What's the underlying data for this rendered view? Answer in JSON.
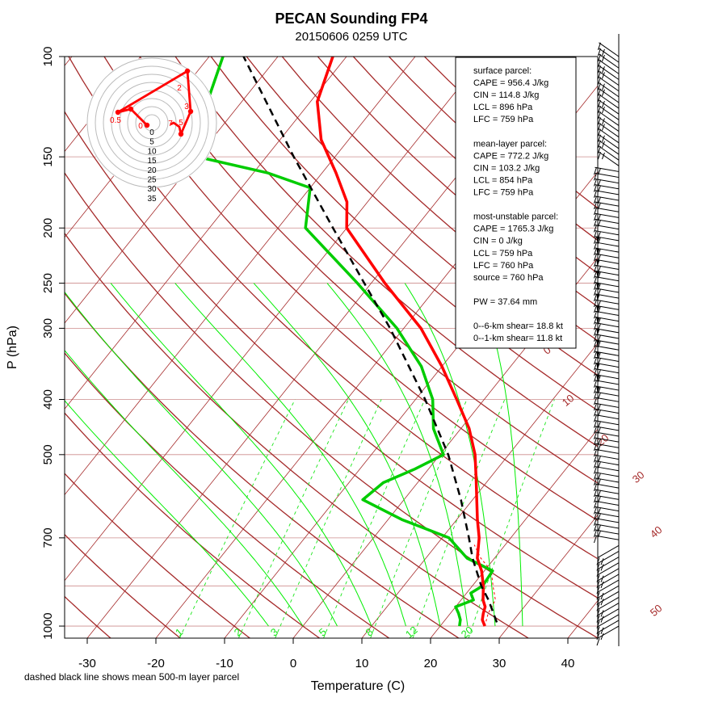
{
  "chart_data": {
    "type": "skew-t",
    "title": "PECAN Sounding FP4",
    "subtitle": "20150606 0259 UTC",
    "xlabel": "Temperature (C)",
    "ylabel": "P (hPa)",
    "footnote": "dashed black line shows mean 500-m layer parcel",
    "x_ticks": [
      -30,
      -20,
      -10,
      0,
      10,
      20,
      30,
      40
    ],
    "y_ticks": [
      100,
      150,
      200,
      250,
      300,
      400,
      500,
      700,
      1000
    ],
    "p_range": [
      100,
      1050
    ],
    "t_range_at_1050": [
      -35,
      40
    ],
    "mixing_ratio_labels": [
      "1",
      "2",
      "3",
      "5",
      "8",
      "12",
      "20"
    ],
    "theta_labels": [
      "0",
      "10",
      "20",
      "30",
      "40",
      "50"
    ],
    "temperature": [
      [
        1000,
        26.5
      ],
      [
        975,
        25.4
      ],
      [
        950,
        24.8
      ],
      [
        925,
        24.3
      ],
      [
        900,
        23.2
      ],
      [
        850,
        21.6
      ],
      [
        800,
        19.6
      ],
      [
        760,
        17.5
      ],
      [
        700,
        15.4
      ],
      [
        650,
        13.0
      ],
      [
        600,
        10.6
      ],
      [
        550,
        8.0
      ],
      [
        500,
        5.1
      ],
      [
        450,
        1.2
      ],
      [
        400,
        -4.0
      ],
      [
        350,
        -10.0
      ],
      [
        300,
        -17.5
      ],
      [
        250,
        -28.0
      ],
      [
        200,
        -40.0
      ],
      [
        180,
        -43.0
      ],
      [
        160,
        -48.0
      ],
      [
        140,
        -54.0
      ],
      [
        120,
        -59.0
      ],
      [
        100,
        -62.0
      ]
    ],
    "dewpoint": [
      [
        1000,
        22.8
      ],
      [
        975,
        22.2
      ],
      [
        950,
        21.2
      ],
      [
        925,
        20.0
      ],
      [
        900,
        21.8
      ],
      [
        875,
        20.6
      ],
      [
        850,
        21.5
      ],
      [
        800,
        21.2
      ],
      [
        760,
        16.0
      ],
      [
        700,
        11.0
      ],
      [
        650,
        2.0
      ],
      [
        600,
        -6.0
      ],
      [
        560,
        -5.0
      ],
      [
        530,
        -2.0
      ],
      [
        500,
        0.5
      ],
      [
        450,
        -4.0
      ],
      [
        400,
        -7.5
      ],
      [
        350,
        -13.0
      ],
      [
        300,
        -21.0
      ],
      [
        250,
        -32.0
      ],
      [
        200,
        -46.0
      ],
      [
        170,
        -50.0
      ],
      [
        160,
        -58.0
      ],
      [
        150,
        -70.0
      ],
      [
        120,
        -75.0
      ],
      [
        100,
        -78.0
      ]
    ],
    "mean_layer_parcel": [
      [
        985,
        27.8
      ],
      [
        900,
        24.0
      ],
      [
        850,
        21.3
      ],
      [
        760,
        16.8
      ],
      [
        700,
        13.9
      ],
      [
        600,
        8.3
      ],
      [
        500,
        1.2
      ],
      [
        400,
        -8.6
      ],
      [
        300,
        -22.0
      ],
      [
        250,
        -31.0
      ],
      [
        200,
        -42.0
      ],
      [
        150,
        -56.0
      ],
      [
        100,
        -75.0
      ]
    ],
    "surface_parcel_path": [
      [
        1000,
        26.5
      ],
      [
        950,
        25.5
      ],
      [
        900,
        25.0
      ],
      [
        850,
        23.0
      ],
      [
        800,
        21.0
      ],
      [
        760,
        18.0
      ],
      [
        720,
        15.5
      ]
    ],
    "hodograph": {
      "ring_labels": [
        "0",
        "5",
        "10",
        "15",
        "20",
        "25",
        "30",
        "35"
      ],
      "points": [
        [
          -1.0,
          3.0
        ],
        [
          -2.0,
          4.5
        ],
        [
          -8.5,
          5.5
        ],
        [
          -13.0,
          4.0
        ],
        [
          -3.0,
          -3.0
        ],
        [
          -1.0,
          -4.5
        ]
      ],
      "point_labels": [
        "0",
        "0.5",
        "2",
        "3",
        "5",
        "7"
      ]
    },
    "wind_barb_levels": 100,
    "info_box": {
      "lines": [
        "surface parcel:",
        "CAPE = 956.4 J/kg",
        "CIN = 114.8 J/kg",
        "LCL = 896 hPa",
        "LFC = 759 hPa",
        "",
        "mean-layer parcel:",
        "CAPE = 772.2 J/kg",
        "CIN = 103.2 J/kg",
        "LCL = 854 hPa",
        "LFC = 759 hPa",
        "",
        "most-unstable parcel:",
        "CAPE = 1765.3 J/kg",
        "CIN = 0 J/kg",
        "LCL = 759 hPa",
        "LFC = 760 hPa",
        "source = 760 hPa",
        "",
        "PW =  37.64 mm",
        "",
        "0--6-km shear= 18.8 kt",
        "0--1-km shear= 11.8 kt"
      ]
    }
  },
  "colors": {
    "temperature": "#ff0000",
    "dewpoint": "#00cc00",
    "isotherm": "#a52a2a",
    "isobar": "#cd8c8c",
    "mixing_ratio": "#19e619",
    "moist_adiabat": "#00ee00",
    "parcel": "#000000"
  }
}
